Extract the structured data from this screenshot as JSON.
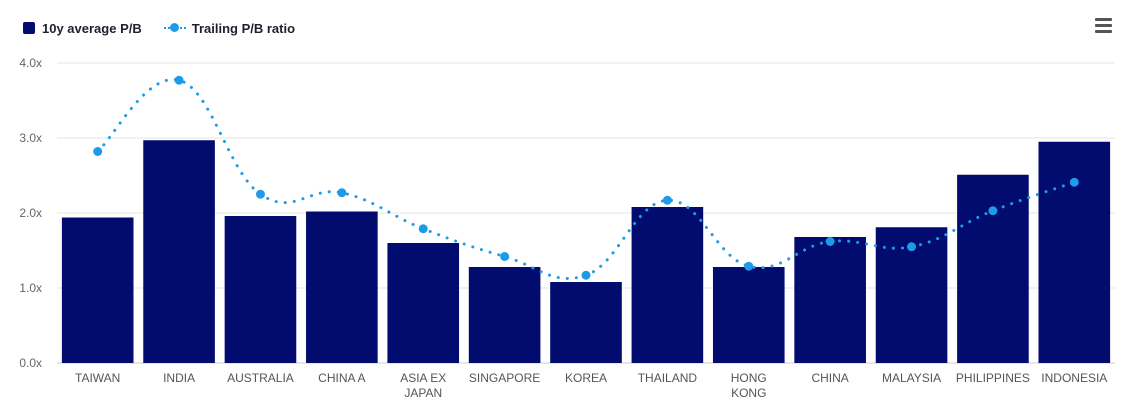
{
  "legend": {
    "bar_label": "10y average P/B",
    "line_label": "Trailing P/B ratio"
  },
  "icons": {
    "menu": "hamburger-menu-icon"
  },
  "colors": {
    "bar": "#020b6e",
    "line": "#1e9be8",
    "grid": "#e6e6e6"
  },
  "chart_data": {
    "type": "bar",
    "categories": [
      [
        "TAIWAN"
      ],
      [
        "INDIA"
      ],
      [
        "AUSTRALIA"
      ],
      [
        "CHINA A"
      ],
      [
        "ASIA EX",
        "JAPAN"
      ],
      [
        "SINGAPORE"
      ],
      [
        "KOREA"
      ],
      [
        "THAILAND"
      ],
      [
        "HONG",
        "KONG"
      ],
      [
        "CHINA"
      ],
      [
        "MALAYSIA"
      ],
      [
        "PHILIPPINES"
      ],
      [
        "INDONESIA"
      ]
    ],
    "series": [
      {
        "name": "10y average P/B",
        "type": "bar",
        "values": [
          1.94,
          2.97,
          1.96,
          2.02,
          1.6,
          1.28,
          1.08,
          2.08,
          1.28,
          1.68,
          1.81,
          2.51,
          2.95
        ]
      },
      {
        "name": "Trailing P/B ratio",
        "type": "line",
        "style": "dotted",
        "values": [
          2.82,
          3.77,
          2.25,
          2.27,
          1.79,
          1.42,
          1.17,
          2.17,
          1.29,
          1.62,
          1.55,
          2.03,
          2.41
        ]
      }
    ],
    "ylim": [
      0,
      4
    ],
    "yticks": [
      "0.0x",
      "1.0x",
      "2.0x",
      "3.0x",
      "4.0x"
    ],
    "grid": true,
    "legend_position": "top-left"
  }
}
